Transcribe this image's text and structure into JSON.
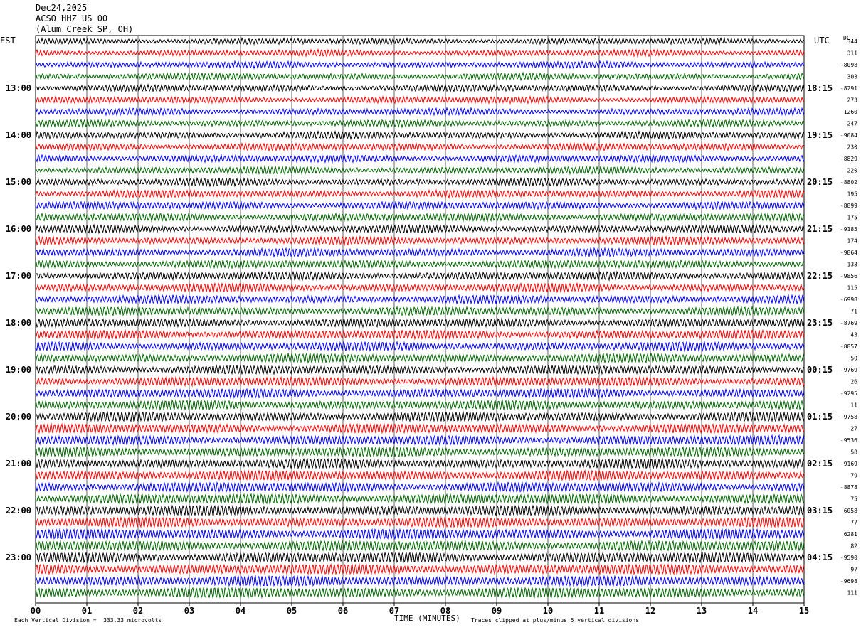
{
  "header": {
    "date": "Dec24,2025",
    "station": "ACSO HHZ US 00",
    "location": "(Alum Creek SP, OH)"
  },
  "tz": {
    "left": "EST",
    "right": "UTC",
    "dc": "DC"
  },
  "footer": {
    "scale_note": "Each Vertical Division =  333.33 microvolts",
    "clip_note": "Traces clipped at plus/minus 5 vertical divisions",
    "xlabel": "TIME (MINUTES)"
  },
  "colors": {
    "black": "#000000",
    "red": "#ff0000",
    "blue": "#0000ff",
    "green": "#006600",
    "grid": "#000000"
  },
  "chart_data": {
    "type": "line",
    "xlabel": "TIME (MINUTES)",
    "xlim": [
      0,
      15
    ],
    "x_ticks": [
      "00",
      "01",
      "02",
      "03",
      "04",
      "05",
      "06",
      "07",
      "08",
      "09",
      "10",
      "11",
      "12",
      "13",
      "14",
      "15"
    ],
    "traces_per_hour": 4,
    "trace_minutes": 15,
    "trace_colors": [
      "#000000",
      "#ff0000",
      "#0000ff",
      "#006600"
    ],
    "est_labels": [
      {
        "trace": 4,
        "label": "13:00"
      },
      {
        "trace": 8,
        "label": "14:00"
      },
      {
        "trace": 12,
        "label": "15:00"
      },
      {
        "trace": 16,
        "label": "16:00"
      },
      {
        "trace": 20,
        "label": "17:00"
      },
      {
        "trace": 24,
        "label": "18:00"
      },
      {
        "trace": 28,
        "label": "19:00"
      },
      {
        "trace": 32,
        "label": "20:00"
      },
      {
        "trace": 36,
        "label": "21:00"
      },
      {
        "trace": 40,
        "label": "22:00"
      },
      {
        "trace": 44,
        "label": "23:00"
      }
    ],
    "utc_labels": [
      {
        "trace": 4,
        "label": "18:15"
      },
      {
        "trace": 8,
        "label": "19:15"
      },
      {
        "trace": 12,
        "label": "20:15"
      },
      {
        "trace": 16,
        "label": "21:15"
      },
      {
        "trace": 20,
        "label": "22:15"
      },
      {
        "trace": 24,
        "label": "23:15"
      },
      {
        "trace": 28,
        "label": "00:15"
      },
      {
        "trace": 32,
        "label": "01:15"
      },
      {
        "trace": 36,
        "label": "02:15"
      },
      {
        "trace": 40,
        "label": "03:15"
      },
      {
        "trace": 44,
        "label": "04:15"
      }
    ],
    "dc_offsets": [
      "344",
      "311",
      "-8098",
      "303",
      "-8291",
      "273",
      "1260",
      "247",
      "-9084",
      "230",
      "-8829",
      "220",
      "-8802",
      "195",
      "-8899",
      "175",
      "-9185",
      "174",
      "-9864",
      "133",
      "-9856",
      "115",
      "-6998",
      "71",
      "-8769",
      "43",
      "-8857",
      "50",
      "-9769",
      "26",
      "-9295",
      "11",
      "-9758",
      "27",
      "-9536",
      "58",
      "-9169",
      "79",
      "-8878",
      "75",
      "6058",
      "77",
      "6281",
      "82",
      "-9590",
      "97",
      "-9698",
      "111"
    ]
  }
}
